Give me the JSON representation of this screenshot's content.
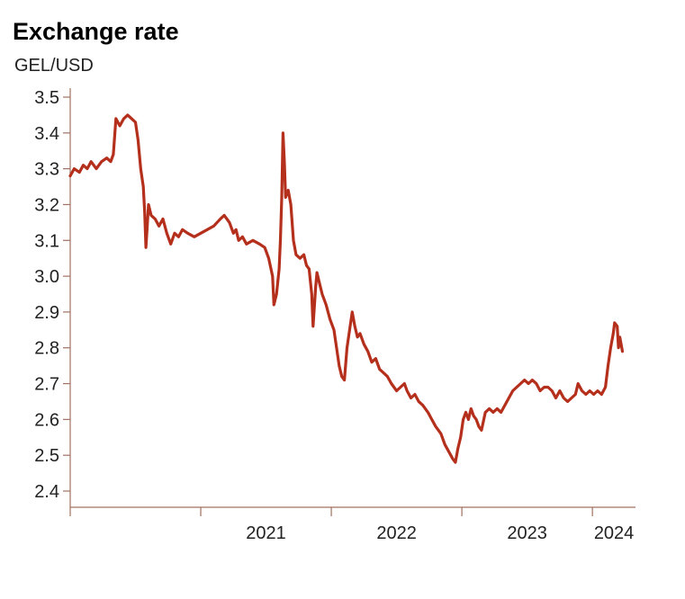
{
  "chart_data": {
    "type": "line",
    "title": "Exchange rate",
    "subtitle": "GEL/USD",
    "xlabel": "",
    "ylabel": "",
    "ylim": [
      2.4,
      3.5
    ],
    "yticks": [
      "3.5",
      "3.4",
      "3.3",
      "3.2",
      "3.1",
      "3.0",
      "2.9",
      "2.8",
      "2.7",
      "2.6",
      "2.5",
      "2.4"
    ],
    "xticks": [
      "2021",
      "2022",
      "2023",
      "2024"
    ],
    "grid": false,
    "line_color": "#b5301c",
    "series": [
      {
        "points": [
          [
            2020.0,
            3.28
          ],
          [
            2020.03,
            3.3
          ],
          [
            2020.07,
            3.29
          ],
          [
            2020.1,
            3.31
          ],
          [
            2020.13,
            3.3
          ],
          [
            2020.16,
            3.32
          ],
          [
            2020.2,
            3.3
          ],
          [
            2020.24,
            3.32
          ],
          [
            2020.28,
            3.33
          ],
          [
            2020.31,
            3.32
          ],
          [
            2020.33,
            3.34
          ],
          [
            2020.35,
            3.44
          ],
          [
            2020.38,
            3.42
          ],
          [
            2020.41,
            3.44
          ],
          [
            2020.44,
            3.45
          ],
          [
            2020.47,
            3.44
          ],
          [
            2020.5,
            3.43
          ],
          [
            2020.52,
            3.38
          ],
          [
            2020.54,
            3.3
          ],
          [
            2020.56,
            3.25
          ],
          [
            2020.57,
            3.18
          ],
          [
            2020.58,
            3.08
          ],
          [
            2020.59,
            3.14
          ],
          [
            2020.6,
            3.2
          ],
          [
            2020.62,
            3.17
          ],
          [
            2020.65,
            3.16
          ],
          [
            2020.68,
            3.14
          ],
          [
            2020.71,
            3.16
          ],
          [
            2020.74,
            3.12
          ],
          [
            2020.77,
            3.09
          ],
          [
            2020.8,
            3.12
          ],
          [
            2020.83,
            3.11
          ],
          [
            2020.86,
            3.13
          ],
          [
            2020.9,
            3.12
          ],
          [
            2020.95,
            3.11
          ],
          [
            2021.0,
            3.12
          ],
          [
            2021.05,
            3.13
          ],
          [
            2021.1,
            3.14
          ],
          [
            2021.15,
            3.16
          ],
          [
            2021.18,
            3.17
          ],
          [
            2021.22,
            3.15
          ],
          [
            2021.25,
            3.12
          ],
          [
            2021.27,
            3.13
          ],
          [
            2021.29,
            3.1
          ],
          [
            2021.32,
            3.11
          ],
          [
            2021.35,
            3.09
          ],
          [
            2021.4,
            3.1
          ],
          [
            2021.45,
            3.09
          ],
          [
            2021.49,
            3.08
          ],
          [
            2021.52,
            3.05
          ],
          [
            2021.55,
            3.0
          ],
          [
            2021.56,
            2.92
          ],
          [
            2021.58,
            2.95
          ],
          [
            2021.6,
            3.02
          ],
          [
            2021.61,
            3.1
          ],
          [
            2021.62,
            3.22
          ],
          [
            2021.63,
            3.4
          ],
          [
            2021.64,
            3.32
          ],
          [
            2021.65,
            3.22
          ],
          [
            2021.67,
            3.24
          ],
          [
            2021.69,
            3.2
          ],
          [
            2021.71,
            3.1
          ],
          [
            2021.73,
            3.06
          ],
          [
            2021.76,
            3.05
          ],
          [
            2021.79,
            3.06
          ],
          [
            2021.81,
            3.03
          ],
          [
            2021.83,
            3.02
          ],
          [
            2021.85,
            2.95
          ],
          [
            2021.86,
            2.86
          ],
          [
            2021.88,
            2.97
          ],
          [
            2021.89,
            3.01
          ],
          [
            2021.91,
            2.98
          ],
          [
            2021.93,
            2.95
          ],
          [
            2021.96,
            2.92
          ],
          [
            2021.99,
            2.88
          ],
          [
            2022.02,
            2.85
          ],
          [
            2022.04,
            2.8
          ],
          [
            2022.06,
            2.75
          ],
          [
            2022.08,
            2.72
          ],
          [
            2022.1,
            2.71
          ],
          [
            2022.12,
            2.8
          ],
          [
            2022.14,
            2.85
          ],
          [
            2022.16,
            2.9
          ],
          [
            2022.18,
            2.86
          ],
          [
            2022.2,
            2.83
          ],
          [
            2022.22,
            2.84
          ],
          [
            2022.25,
            2.81
          ],
          [
            2022.28,
            2.79
          ],
          [
            2022.31,
            2.76
          ],
          [
            2022.34,
            2.77
          ],
          [
            2022.37,
            2.74
          ],
          [
            2022.4,
            2.73
          ],
          [
            2022.43,
            2.72
          ],
          [
            2022.46,
            2.7
          ],
          [
            2022.5,
            2.68
          ],
          [
            2022.53,
            2.69
          ],
          [
            2022.56,
            2.7
          ],
          [
            2022.58,
            2.68
          ],
          [
            2022.61,
            2.66
          ],
          [
            2022.64,
            2.67
          ],
          [
            2022.67,
            2.65
          ],
          [
            2022.7,
            2.64
          ],
          [
            2022.74,
            2.62
          ],
          [
            2022.77,
            2.6
          ],
          [
            2022.8,
            2.58
          ],
          [
            2022.84,
            2.56
          ],
          [
            2022.87,
            2.53
          ],
          [
            2022.9,
            2.51
          ],
          [
            2022.93,
            2.49
          ],
          [
            2022.95,
            2.48
          ],
          [
            2022.97,
            2.52
          ],
          [
            2022.99,
            2.55
          ],
          [
            2023.01,
            2.6
          ],
          [
            2023.03,
            2.62
          ],
          [
            2023.05,
            2.6
          ],
          [
            2023.07,
            2.63
          ],
          [
            2023.09,
            2.61
          ],
          [
            2023.11,
            2.6
          ],
          [
            2023.13,
            2.58
          ],
          [
            2023.15,
            2.57
          ],
          [
            2023.18,
            2.62
          ],
          [
            2023.21,
            2.63
          ],
          [
            2023.24,
            2.62
          ],
          [
            2023.27,
            2.63
          ],
          [
            2023.3,
            2.62
          ],
          [
            2023.33,
            2.64
          ],
          [
            2023.36,
            2.66
          ],
          [
            2023.39,
            2.68
          ],
          [
            2023.42,
            2.69
          ],
          [
            2023.45,
            2.7
          ],
          [
            2023.48,
            2.71
          ],
          [
            2023.51,
            2.7
          ],
          [
            2023.54,
            2.71
          ],
          [
            2023.57,
            2.7
          ],
          [
            2023.6,
            2.68
          ],
          [
            2023.63,
            2.69
          ],
          [
            2023.66,
            2.69
          ],
          [
            2023.69,
            2.68
          ],
          [
            2023.72,
            2.66
          ],
          [
            2023.75,
            2.68
          ],
          [
            2023.78,
            2.66
          ],
          [
            2023.81,
            2.65
          ],
          [
            2023.84,
            2.66
          ],
          [
            2023.87,
            2.67
          ],
          [
            2023.89,
            2.7
          ],
          [
            2023.92,
            2.68
          ],
          [
            2023.95,
            2.67
          ],
          [
            2023.98,
            2.68
          ],
          [
            2024.01,
            2.67
          ],
          [
            2024.04,
            2.68
          ],
          [
            2024.07,
            2.67
          ],
          [
            2024.1,
            2.69
          ],
          [
            2024.12,
            2.75
          ],
          [
            2024.14,
            2.8
          ],
          [
            2024.16,
            2.84
          ],
          [
            2024.17,
            2.87
          ],
          [
            2024.19,
            2.86
          ],
          [
            2024.2,
            2.8
          ],
          [
            2024.21,
            2.83
          ],
          [
            2024.23,
            2.79
          ]
        ]
      }
    ]
  }
}
